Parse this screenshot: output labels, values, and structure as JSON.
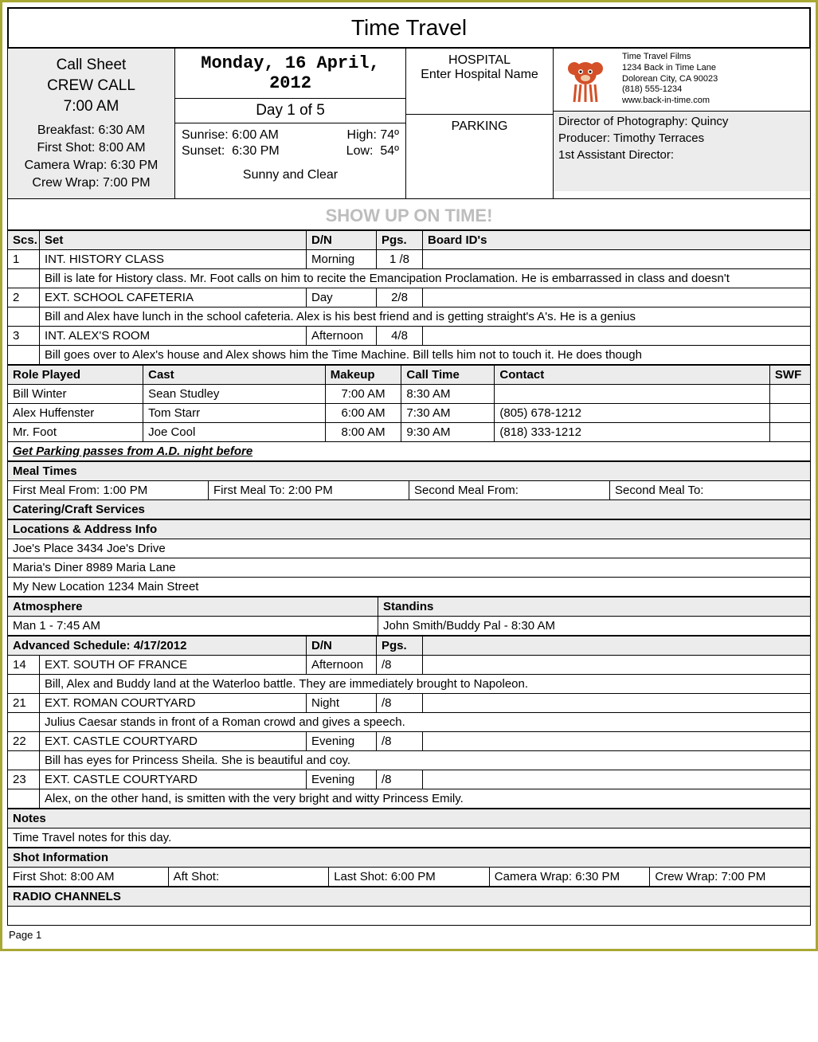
{
  "title": "Time Travel",
  "callsheet": {
    "label": "Call Sheet",
    "crew_label": "CREW CALL",
    "crew_time": "7:00 AM",
    "lines": {
      "breakfast": "Breakfast: 6:30 AM",
      "first_shot": "First Shot: 8:00 AM",
      "camera_wrap": "Camera Wrap: 6:30 PM",
      "crew_wrap": "Crew Wrap: 7:00 PM"
    }
  },
  "date": "Monday, 16 April, 2012",
  "dayof": "Day 1 of 5",
  "weather": {
    "sunrise_label": "Sunrise:",
    "sunrise": "6:00 AM",
    "high_label": "High:",
    "high": "74º",
    "sunset_label": "Sunset:",
    "sunset": "6:30 PM",
    "low_label": "Low:",
    "low": "54º",
    "summary": "Sunny and Clear"
  },
  "hospital": {
    "label": "HOSPITAL",
    "name": "Enter Hospital Name"
  },
  "parking": {
    "label": "PARKING"
  },
  "company": {
    "name": "Time Travel Films",
    "addr1": "1234 Back in Time Lane",
    "addr2": "Dolorean City, CA 90023",
    "phone": "(818) 555-1234",
    "web": "www.back-in-time.com"
  },
  "staff": {
    "dp": "Director of Photography: Quincy",
    "producer": "Producer: Timothy Terraces",
    "ad": "1st Assistant Director:"
  },
  "banner": "SHOW UP ON TIME!",
  "scenes_hdr": {
    "scs": "Scs.",
    "set": "Set",
    "dn": "D/N",
    "pgs": "Pgs.",
    "board": "Board ID's"
  },
  "scenes": [
    {
      "scs": "1",
      "set": "INT. HISTORY CLASS",
      "dn": "Morning",
      "pgs": "1 /8",
      "board": "",
      "desc": "Bill is late for History class. Mr. Foot calls on him to recite the Emancipation Proclamation. He is embarrassed in class and doesn't"
    },
    {
      "scs": "2",
      "set": "EXT. SCHOOL CAFETERIA",
      "dn": "Day",
      "pgs": "2/8",
      "board": "",
      "desc": "Bill and Alex have lunch in the school cafeteria. Alex is his best friend and is getting straight's A's. He is a genius"
    },
    {
      "scs": "3",
      "set": "INT. ALEX'S ROOM",
      "dn": "Afternoon",
      "pgs": "4/8",
      "board": "",
      "desc": "Bill goes over to Alex's house and Alex shows him the Time Machine. Bill tells him not to touch it. He does though"
    }
  ],
  "cast_hdr": {
    "role": "Role Played",
    "cast": "Cast",
    "mk": "Makeup",
    "ct": "Call Time",
    "contact": "Contact",
    "swf": "SWF"
  },
  "cast": [
    {
      "role": "Bill Winter",
      "cast": "Sean Studley",
      "mk": "7:00 AM",
      "ct": "8:30 AM",
      "contact": "",
      "swf": ""
    },
    {
      "role": "Alex Huffenster",
      "cast": "Tom Starr",
      "mk": "6:00 AM",
      "ct": "7:30 AM",
      "contact": "(805) 678-1212",
      "swf": ""
    },
    {
      "role": "Mr. Foot",
      "cast": "Joe Cool",
      "mk": "8:00 AM",
      "ct": "9:30 AM",
      "contact": "(818) 333-1212",
      "swf": ""
    }
  ],
  "parking_note": "Get Parking passes from A.D. night before",
  "meals_hdr": "Meal Times",
  "meals": {
    "fm_from": "First Meal From: 1:00 PM",
    "fm_to": "First Meal To: 2:00 PM",
    "sm_from": "Second Meal From:",
    "sm_to": "Second Meal To:"
  },
  "catering_hdr": "Catering/Craft Services",
  "locations_hdr": "Locations & Address Info",
  "locations": [
    "Joe's Place 3434 Joe's Drive",
    "Maria's Diner 8989 Maria Lane",
    "My New Location 1234 Main Street"
  ],
  "atmo_hdr": "Atmosphere",
  "standin_hdr": "Standins",
  "atmo": "Man 1 - 7:45 AM",
  "standin": "John Smith/Buddy Pal - 8:30 AM",
  "adv_hdr": {
    "label": "Advanced Schedule: 4/17/2012",
    "dn": "D/N",
    "pgs": "Pgs."
  },
  "adv": [
    {
      "scs": "14",
      "set": "EXT. SOUTH OF FRANCE",
      "dn": "Afternoon",
      "pgs": "/8",
      "desc": "Bill, Alex and Buddy land at the Waterloo battle. They are immediately brought to Napoleon."
    },
    {
      "scs": "21",
      "set": "EXT. ROMAN COURTYARD",
      "dn": "Night",
      "pgs": "/8",
      "desc": "Julius Caesar stands in front of a Roman crowd and gives a speech."
    },
    {
      "scs": "22",
      "set": "EXT. CASTLE COURTYARD",
      "dn": "Evening",
      "pgs": "/8",
      "desc": "Bill has eyes for Princess Sheila. She is beautiful and coy."
    },
    {
      "scs": "23",
      "set": "EXT. CASTLE COURTYARD",
      "dn": "Evening",
      "pgs": "/8",
      "desc": "Alex, on the other hand, is smitten with the very bright and witty Princess Emily."
    }
  ],
  "notes_hdr": "Notes",
  "notes": "Time Travel notes for this day.",
  "shotinfo_hdr": "Shot Information",
  "shotinfo": {
    "first": "First Shot: 8:00 AM",
    "aft": "Aft Shot:",
    "last": "Last Shot: 6:00 PM",
    "cam": "Camera Wrap: 6:30 PM",
    "crew": "Crew Wrap: 7:00 PM"
  },
  "radio_hdr": "RADIO CHANNELS",
  "pagenum": "Page 1"
}
